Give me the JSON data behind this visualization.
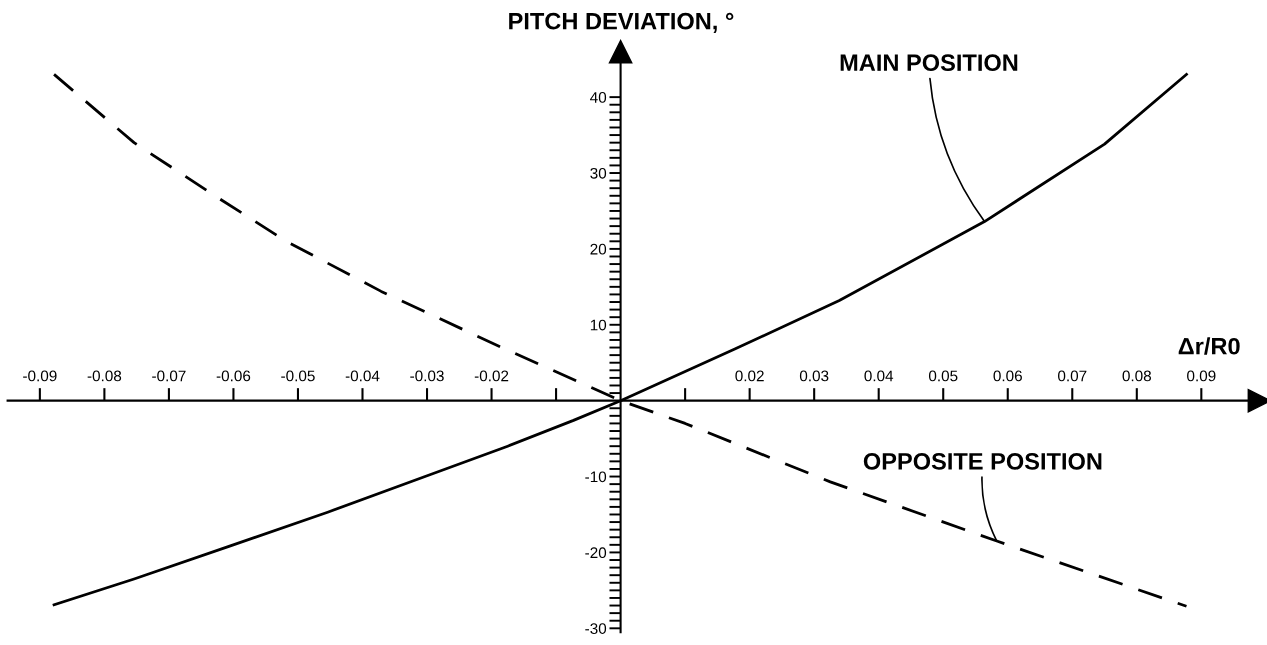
{
  "chart_data": {
    "type": "line",
    "xlabel": "Δr/R0",
    "ylabel": "PITCH DEVIATION, °",
    "xlim": [
      -0.095,
      0.099
    ],
    "ylim": [
      -30.5,
      46
    ],
    "xticks": [
      {
        "value": -0.09,
        "label": "-0.09"
      },
      {
        "value": -0.08,
        "label": "-0.08"
      },
      {
        "value": -0.07,
        "label": "-0.07"
      },
      {
        "value": -0.06,
        "label": "-0.06"
      },
      {
        "value": -0.05,
        "label": "-0.05"
      },
      {
        "value": -0.04,
        "label": "-0.04"
      },
      {
        "value": -0.03,
        "label": "-0.03"
      },
      {
        "value": -0.02,
        "label": "-0.02"
      },
      {
        "value": -0.01,
        "label": null
      },
      {
        "value": 0.01,
        "label": null
      },
      0.02,
      0.03,
      0.04,
      0.05,
      0.06,
      0.07,
      0.08,
      0.09
    ],
    "yticks": [
      {
        "value": -30,
        "label": "-30"
      },
      {
        "value": -29,
        "label": null
      },
      {
        "value": -28,
        "label": null
      },
      {
        "value": -27,
        "label": null
      },
      {
        "value": -26,
        "label": null
      },
      {
        "value": -25,
        "label": null
      },
      {
        "value": -24,
        "label": null
      },
      {
        "value": -23,
        "label": null
      },
      {
        "value": -22,
        "label": null
      },
      {
        "value": -21,
        "label": null
      },
      {
        "value": -20,
        "label": "-20"
      },
      {
        "value": -19,
        "label": null
      },
      {
        "value": -18,
        "label": null
      },
      {
        "value": -17,
        "label": null
      },
      {
        "value": -16,
        "label": null
      },
      {
        "value": -15,
        "label": null
      },
      {
        "value": -14,
        "label": null
      },
      {
        "value": -13,
        "label": null
      },
      {
        "value": -12,
        "label": null
      },
      {
        "value": -11,
        "label": null
      },
      {
        "value": -10,
        "label": "-10"
      },
      {
        "value": -9,
        "label": null
      },
      {
        "value": -8,
        "label": null
      },
      {
        "value": -7,
        "label": null
      },
      {
        "value": -6,
        "label": null
      },
      {
        "value": -5,
        "label": null
      },
      {
        "value": -4,
        "label": null
      },
      {
        "value": -3,
        "label": null
      },
      {
        "value": -2,
        "label": null
      },
      {
        "value": -1,
        "label": null
      },
      {
        "value": 1,
        "label": null
      },
      {
        "value": 2,
        "label": null
      },
      {
        "value": 3,
        "label": null
      },
      {
        "value": 4,
        "label": null
      },
      {
        "value": 5,
        "label": null
      },
      {
        "value": 6,
        "label": null
      },
      {
        "value": 7,
        "label": null
      },
      {
        "value": 8,
        "label": null
      },
      {
        "value": 9,
        "label": null
      },
      10,
      {
        "value": 11,
        "label": null
      },
      {
        "value": 12,
        "label": null
      },
      {
        "value": 13,
        "label": null
      },
      {
        "value": 14,
        "label": null
      },
      {
        "value": 15,
        "label": null
      },
      {
        "value": 16,
        "label": null
      },
      {
        "value": 17,
        "label": null
      },
      {
        "value": 18,
        "label": null
      },
      {
        "value": 19,
        "label": null
      },
      20,
      {
        "value": 21,
        "label": null
      },
      {
        "value": 22,
        "label": null
      },
      {
        "value": 23,
        "label": null
      },
      {
        "value": 24,
        "label": null
      },
      {
        "value": 25,
        "label": null
      },
      {
        "value": 26,
        "label": null
      },
      {
        "value": 27,
        "label": null
      },
      {
        "value": 28,
        "label": null
      },
      {
        "value": 29,
        "label": null
      },
      30,
      {
        "value": 31,
        "label": null
      },
      {
        "value": 32,
        "label": null
      },
      {
        "value": 33,
        "label": null
      },
      {
        "value": 34,
        "label": null
      },
      {
        "value": 35,
        "label": null
      },
      {
        "value": 36,
        "label": null
      },
      {
        "value": 37,
        "label": null
      },
      {
        "value": 38,
        "label": null
      },
      {
        "value": 39,
        "label": null
      },
      40
    ],
    "series": [
      {
        "color": "#000000",
        "line_style": "solid",
        "x": [
          -0.0878,
          -0.0754,
          -0.0607,
          -0.0454,
          -0.0303,
          -0.0175,
          -0.0073,
          0,
          0.0177,
          0.0339,
          0.0564,
          0.075,
          0.0877
        ],
        "values": [
          -26.9,
          -23.5,
          -19.2,
          -14.7,
          -10.0,
          -6.0,
          -2.6,
          0,
          6.8,
          13.2,
          23.6,
          33.8,
          43.0
        ]
      },
      {
        "color": "#000000",
        "line_style": "dashed",
        "x": [
          -0.0878,
          -0.0754,
          -0.0627,
          -0.0518,
          -0.0371,
          -0.0184,
          0,
          0.01,
          0.0325,
          0.0583,
          0.0877
        ],
        "values": [
          43.0,
          34.0,
          26.9,
          21.0,
          14.4,
          7.0,
          0,
          -3.0,
          -10.7,
          -18.5,
          -27.1
        ]
      }
    ],
    "annotations": [
      {
        "text": "MAIN POSITION",
        "x": 0.0564,
        "y": 23.6
      },
      {
        "text": "OPPOSITE POSITION",
        "x": 0.0583,
        "y": -18.5
      }
    ],
    "grid": false,
    "legend": false,
    "marker": "none"
  }
}
